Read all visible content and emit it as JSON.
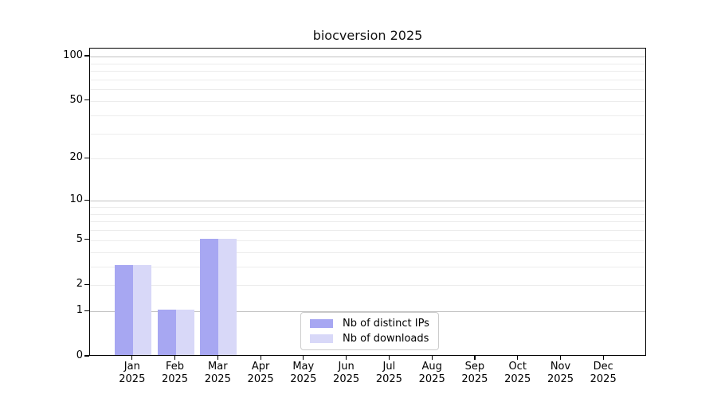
{
  "figure": {
    "background": "#ffffff"
  },
  "chart_data": {
    "type": "bar",
    "title": "biocversion 2025",
    "year_label": "2025",
    "categories": [
      "Jan",
      "Feb",
      "Mar",
      "Apr",
      "May",
      "Jun",
      "Jul",
      "Aug",
      "Sep",
      "Oct",
      "Nov",
      "Dec"
    ],
    "series": [
      {
        "name": "Nb of distinct IPs",
        "color": "#a7a7f2",
        "values": [
          3,
          1,
          5,
          0,
          0,
          0,
          0,
          0,
          0,
          0,
          0,
          0
        ]
      },
      {
        "name": "Nb of downloads",
        "color": "#d8d8f8",
        "values": [
          3,
          1,
          5,
          0,
          0,
          0,
          0,
          0,
          0,
          0,
          0,
          0
        ]
      }
    ],
    "y_axis": {
      "scale": "log10(1+v)",
      "tick_values": [
        0,
        1,
        2,
        5,
        10,
        20,
        50,
        100
      ],
      "tick_labels": [
        "0",
        "1",
        "2",
        "5",
        "10",
        "20",
        "50",
        "100"
      ],
      "minor_gridline_values": [
        3,
        4,
        6,
        7,
        8,
        9,
        30,
        40,
        60,
        70,
        80,
        90
      ],
      "strong_gridline_values": [
        1,
        10,
        100
      ],
      "ylim": [
        0,
        113
      ]
    },
    "legend": {
      "position": "bottom-center"
    },
    "grid": "horizontal"
  },
  "colors": {
    "grid_strong": "#c2c2c2",
    "grid_light": "#ececec",
    "axis": "#000000"
  }
}
